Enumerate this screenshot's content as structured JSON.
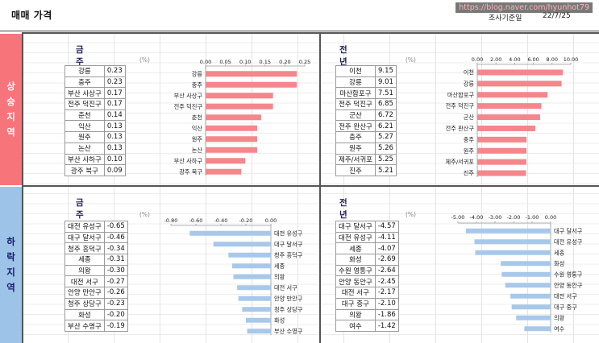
{
  "header": {
    "title": "매매 가격",
    "watermark": "https://blog.naver.com/hyunhot79",
    "survey_label": "조사기준일",
    "survey_date": "22/7/25"
  },
  "sections": {
    "rise_label": "상승지역",
    "fall_label": "하락지역"
  },
  "colors": {
    "rise_bar": "#f4868c",
    "fall_bar": "#a8c8ea",
    "rise_side": "#f7747b",
    "fall_side": "#9dc3e8",
    "title_text": "#1c1c5a"
  },
  "panels": [
    {
      "title": "금주 상승률 상위",
      "unit": "(%)",
      "rows": [
        {
          "name": "강릉",
          "value": "0.23"
        },
        {
          "name": "충주",
          "value": "0.23"
        },
        {
          "name": "부산 사상구",
          "value": "0.17"
        },
        {
          "name": "전주 덕진구",
          "value": "0.17"
        },
        {
          "name": "춘천",
          "value": "0.14"
        },
        {
          "name": "익산",
          "value": "0.13"
        },
        {
          "name": "원주",
          "value": "0.13"
        },
        {
          "name": "논산",
          "value": "0.13"
        },
        {
          "name": "부산 사하구",
          "value": "0.10"
        },
        {
          "name": "광주 북구",
          "value": "0.09"
        }
      ]
    },
    {
      "title": "전년말대비 상승률 상위",
      "unit": "(%)",
      "rows": [
        {
          "name": "이천",
          "value": "9.15"
        },
        {
          "name": "강릉",
          "value": "9.01"
        },
        {
          "name": "마산합포구",
          "value": "7.51"
        },
        {
          "name": "전주 덕진구",
          "value": "6.85"
        },
        {
          "name": "군산",
          "value": "6.72"
        },
        {
          "name": "전주 완산구",
          "value": "6.21"
        },
        {
          "name": "충주",
          "value": "5.27"
        },
        {
          "name": "원주",
          "value": "5.26"
        },
        {
          "name": "제주/서귀포",
          "value": "5.25"
        },
        {
          "name": "진주",
          "value": "5.21"
        }
      ]
    },
    {
      "title": "금주 하락률 상위",
      "unit": "(%)",
      "rows": [
        {
          "name": "대전 유성구",
          "value": "-0.65"
        },
        {
          "name": "대구 달서구",
          "value": "-0.46"
        },
        {
          "name": "청주 흥덕구",
          "value": "-0.34"
        },
        {
          "name": "세종",
          "value": "-0.31"
        },
        {
          "name": "의왕",
          "value": "-0.30"
        },
        {
          "name": "대전 서구",
          "value": "-0.27"
        },
        {
          "name": "안양 만안구",
          "value": "-0.26"
        },
        {
          "name": "청주 상당구",
          "value": "-0.23"
        },
        {
          "name": "화성",
          "value": "-0.20"
        },
        {
          "name": "부산 수영구",
          "value": "-0.19"
        }
      ]
    },
    {
      "title": "전년말대비 하락률 상위",
      "unit": "(%)",
      "rows": [
        {
          "name": "대구 달서구",
          "value": "-4.57"
        },
        {
          "name": "대전 유성구",
          "value": "-4.11"
        },
        {
          "name": "세종",
          "value": "-4.07"
        },
        {
          "name": "화성",
          "value": "-2.69"
        },
        {
          "name": "수원 영통구",
          "value": "-2.64"
        },
        {
          "name": "안양 동안구",
          "value": "-2.45"
        },
        {
          "name": "대전 서구",
          "value": "-2.17"
        },
        {
          "name": "대구 중구",
          "value": "-2.10"
        },
        {
          "name": "의왕",
          "value": "-1.86"
        },
        {
          "name": "여수",
          "value": "-1.42"
        }
      ]
    }
  ],
  "chart_data": [
    {
      "type": "bar",
      "orientation": "horizontal",
      "title": "금주 상승률 상위",
      "categories": [
        "강릉",
        "충주",
        "부산 사상구",
        "전주 덕진구",
        "춘천",
        "익산",
        "원주",
        "논산",
        "부산 사하구",
        "광주 북구"
      ],
      "values": [
        0.23,
        0.23,
        0.17,
        0.17,
        0.14,
        0.13,
        0.13,
        0.13,
        0.1,
        0.09
      ],
      "xlim": [
        0,
        0.25
      ],
      "ticks": [
        "0.00",
        "0.05",
        "0.10",
        "0.15",
        "0.20",
        "0.25"
      ],
      "label_side": "left",
      "color": "#f4868c"
    },
    {
      "type": "bar",
      "orientation": "horizontal",
      "title": "전년말대비 상승률 상위",
      "categories": [
        "이천",
        "강릉",
        "마산합포구",
        "전주 덕진구",
        "군산",
        "전주 완산구",
        "충주",
        "원주",
        "제주/서귀포",
        "진주"
      ],
      "values": [
        9.15,
        9.01,
        7.51,
        6.85,
        6.72,
        6.21,
        5.27,
        5.26,
        5.25,
        5.21
      ],
      "xlim": [
        0,
        10
      ],
      "ticks": [
        "0.00",
        "2.00",
        "4.00",
        "6.00",
        "8.00",
        "10.00"
      ],
      "label_side": "left",
      "color": "#f4868c"
    },
    {
      "type": "bar",
      "orientation": "horizontal",
      "title": "금주 하락률 상위",
      "categories": [
        "대전 유성구",
        "대구 달서구",
        "청주 흥덕구",
        "세종",
        "의왕",
        "대전 서구",
        "안양 만안구",
        "청주 상당구",
        "화성",
        "부산 수영구"
      ],
      "values": [
        -0.65,
        -0.46,
        -0.34,
        -0.31,
        -0.3,
        -0.27,
        -0.26,
        -0.23,
        -0.2,
        -0.19
      ],
      "xlim": [
        -0.8,
        0
      ],
      "ticks": [
        "-0.80",
        "-0.60",
        "-0.40",
        "-0.20",
        "0.00"
      ],
      "label_side": "right",
      "color": "#a8c8ea"
    },
    {
      "type": "bar",
      "orientation": "horizontal",
      "title": "전년말대비 하락률 상위",
      "categories": [
        "대구 달서구",
        "대전 유성구",
        "세종",
        "화성",
        "수원 영통구",
        "안양 동안구",
        "대전 서구",
        "대구 중구",
        "의왕",
        "여수"
      ],
      "values": [
        -4.57,
        -4.11,
        -4.07,
        -2.69,
        -2.64,
        -2.45,
        -2.17,
        -2.1,
        -1.86,
        -1.42
      ],
      "xlim": [
        -5,
        0
      ],
      "ticks": [
        "-5.00",
        "-4.00",
        "-3.00",
        "-2.00",
        "-1.00",
        "0.00"
      ],
      "label_side": "right",
      "color": "#a8c8ea"
    }
  ]
}
